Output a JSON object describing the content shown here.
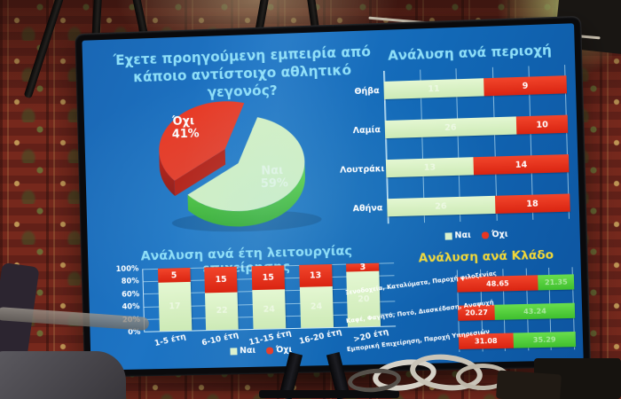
{
  "slide": {
    "legend": {
      "yes": "Ναι",
      "no": "Όχι"
    },
    "colors": {
      "background": "#1268b4",
      "title_cyan": "#8edff8",
      "title_yellow": "#f2d838",
      "green_light": "#d7f1c1",
      "green_vivid": "#52cd3a",
      "red": "#e8351f"
    }
  },
  "chart_data": [
    {
      "type": "pie",
      "style": "3d-exploded",
      "title": "Έχετε προηγούμενη εμπειρία από κάποιο αντίστοιχο αθλητικό γεγονός?",
      "slices": [
        {
          "label": "Όχι",
          "pct": "41%",
          "value": 41,
          "color": "red"
        },
        {
          "label": "Ναι",
          "pct": "59%",
          "value": 59,
          "color": "green"
        }
      ]
    },
    {
      "type": "bar",
      "orientation": "horizontal",
      "stacked": "percent",
      "title": "Ανάλυση ανά περιοχή",
      "categories": [
        "Θήβα",
        "Λαμία",
        "Λουτράκι",
        "Αθήνα"
      ],
      "series": [
        {
          "name": "Ναι",
          "color": "green",
          "values": [
            11,
            26,
            13,
            26
          ],
          "labels_faint": true
        },
        {
          "name": "Όχι",
          "color": "red",
          "values": [
            9,
            10,
            14,
            18
          ]
        }
      ],
      "legend": [
        "Ναι",
        "Όχι"
      ]
    },
    {
      "type": "bar",
      "orientation": "vertical",
      "stacked": "percent",
      "title": "Ανάλυση ανά έτη λειτουργίας επιχείρησης",
      "categories": [
        "1-5 έτη",
        "6-10 έτη",
        "11-15 έτη",
        "16-20 έτη",
        ">20 έτη"
      ],
      "yticks": [
        "0%",
        "20%",
        "40%",
        "60%",
        "80%",
        "100%"
      ],
      "series": [
        {
          "name": "Ναι",
          "color": "green",
          "values": [
            17,
            22,
            24,
            24,
            20
          ],
          "labels_faint": true
        },
        {
          "name": "Όχι",
          "color": "red",
          "values": [
            5,
            15,
            15,
            13,
            3
          ]
        }
      ],
      "legend": [
        "Ναι",
        "Όχι"
      ]
    },
    {
      "type": "bar",
      "orientation": "horizontal",
      "stacked": "percent",
      "title": "Ανάλυση ανά Κλάδο",
      "categories": [
        "Ξενοδοχεία, Καταλύματα, Παροχή φιλοξενίας",
        "Καφέ, Φαγητό, Ποτό, Διασκέδαση, Αναψυχή",
        "Εμπορική Επιχείρηση, Παροχή Υπηρεσιών"
      ],
      "series": [
        {
          "name": "Όχι",
          "color": "red",
          "values": [
            48.65,
            20.27,
            31.08
          ]
        },
        {
          "name": "Ναι",
          "color": "green_vivid",
          "values": [
            21.35,
            43.24,
            35.29
          ],
          "labels_faint": true
        }
      ]
    }
  ]
}
